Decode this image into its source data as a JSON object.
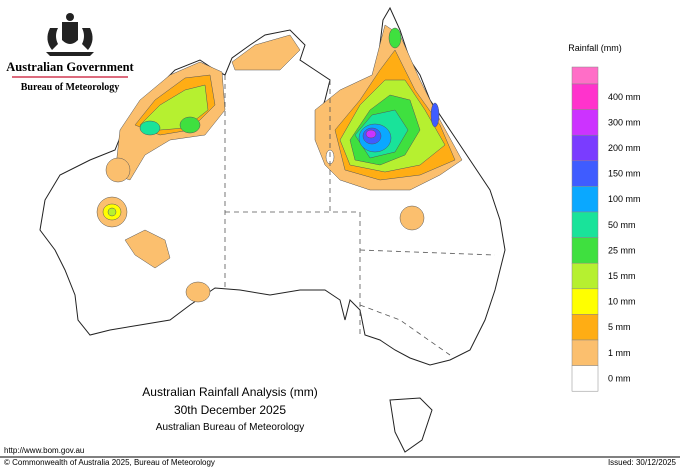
{
  "header": {
    "government": "Australian Government",
    "agency": "Bureau of Meteorology"
  },
  "legend": {
    "title": "Rainfall (mm)",
    "top_color": "#ff6ec7",
    "items": [
      {
        "label": "400 mm",
        "color": "#ff33cc"
      },
      {
        "label": "300 mm",
        "color": "#cc33ff"
      },
      {
        "label": "200 mm",
        "color": "#7a3cff"
      },
      {
        "label": "150 mm",
        "color": "#3f5cff"
      },
      {
        "label": "100 mm",
        "color": "#0aa8ff"
      },
      {
        "label": "50 mm",
        "color": "#19e39a"
      },
      {
        "label": "25 mm",
        "color": "#3fe03f"
      },
      {
        "label": "15 mm",
        "color": "#b6f030"
      },
      {
        "label": "10 mm",
        "color": "#ffff00"
      },
      {
        "label": "5 mm",
        "color": "#ffad14"
      },
      {
        "label": "1 mm",
        "color": "#fbbf6e"
      },
      {
        "label": "0 mm",
        "color": "#ffffff"
      }
    ]
  },
  "caption": {
    "title": "Australian Rainfall Analysis (mm)",
    "date": "30th December 2025",
    "source": "Australian Bureau of Meteorology"
  },
  "footer": {
    "url": "http://www.bom.gov.au",
    "copyright": "© Commonwealth of Australia 2025, Bureau of Meteorology",
    "issued": "Issued: 30/12/2025"
  }
}
